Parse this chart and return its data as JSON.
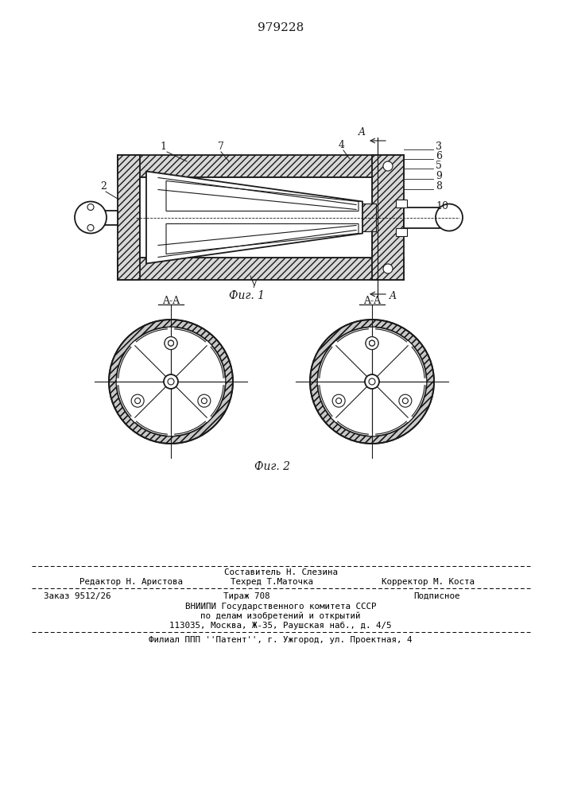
{
  "patent_number": "979228",
  "fig1_label": "Фиг. 1",
  "fig2_label": "Фиг. 2",
  "section_label": "A-A",
  "bg_color": "#ffffff",
  "line_color": "#1a1a1a",
  "footer_sestavitel": "Составитель Н. Слезина",
  "footer_redaktor": "Редактор Н. Аристова",
  "footer_tehred": "Техред Т.Маточка",
  "footer_korrektor": "Корректор М. Коста",
  "footer_zakaz": "Заказ 9512/26",
  "footer_tirazh": "Тираж 708",
  "footer_podpisnoe": "Подписное",
  "footer_vniip1": "ВНИИПИ Государственного комитета СССР",
  "footer_vniip2": "по делам изобретений и открытий",
  "footer_vniip3": "113035, Москва, Ж-35, Раушская наб., д. 4/5",
  "footer_filial": "Филиал ППП ''Патент'', г. Ужгород, ул. Проектная, 4"
}
